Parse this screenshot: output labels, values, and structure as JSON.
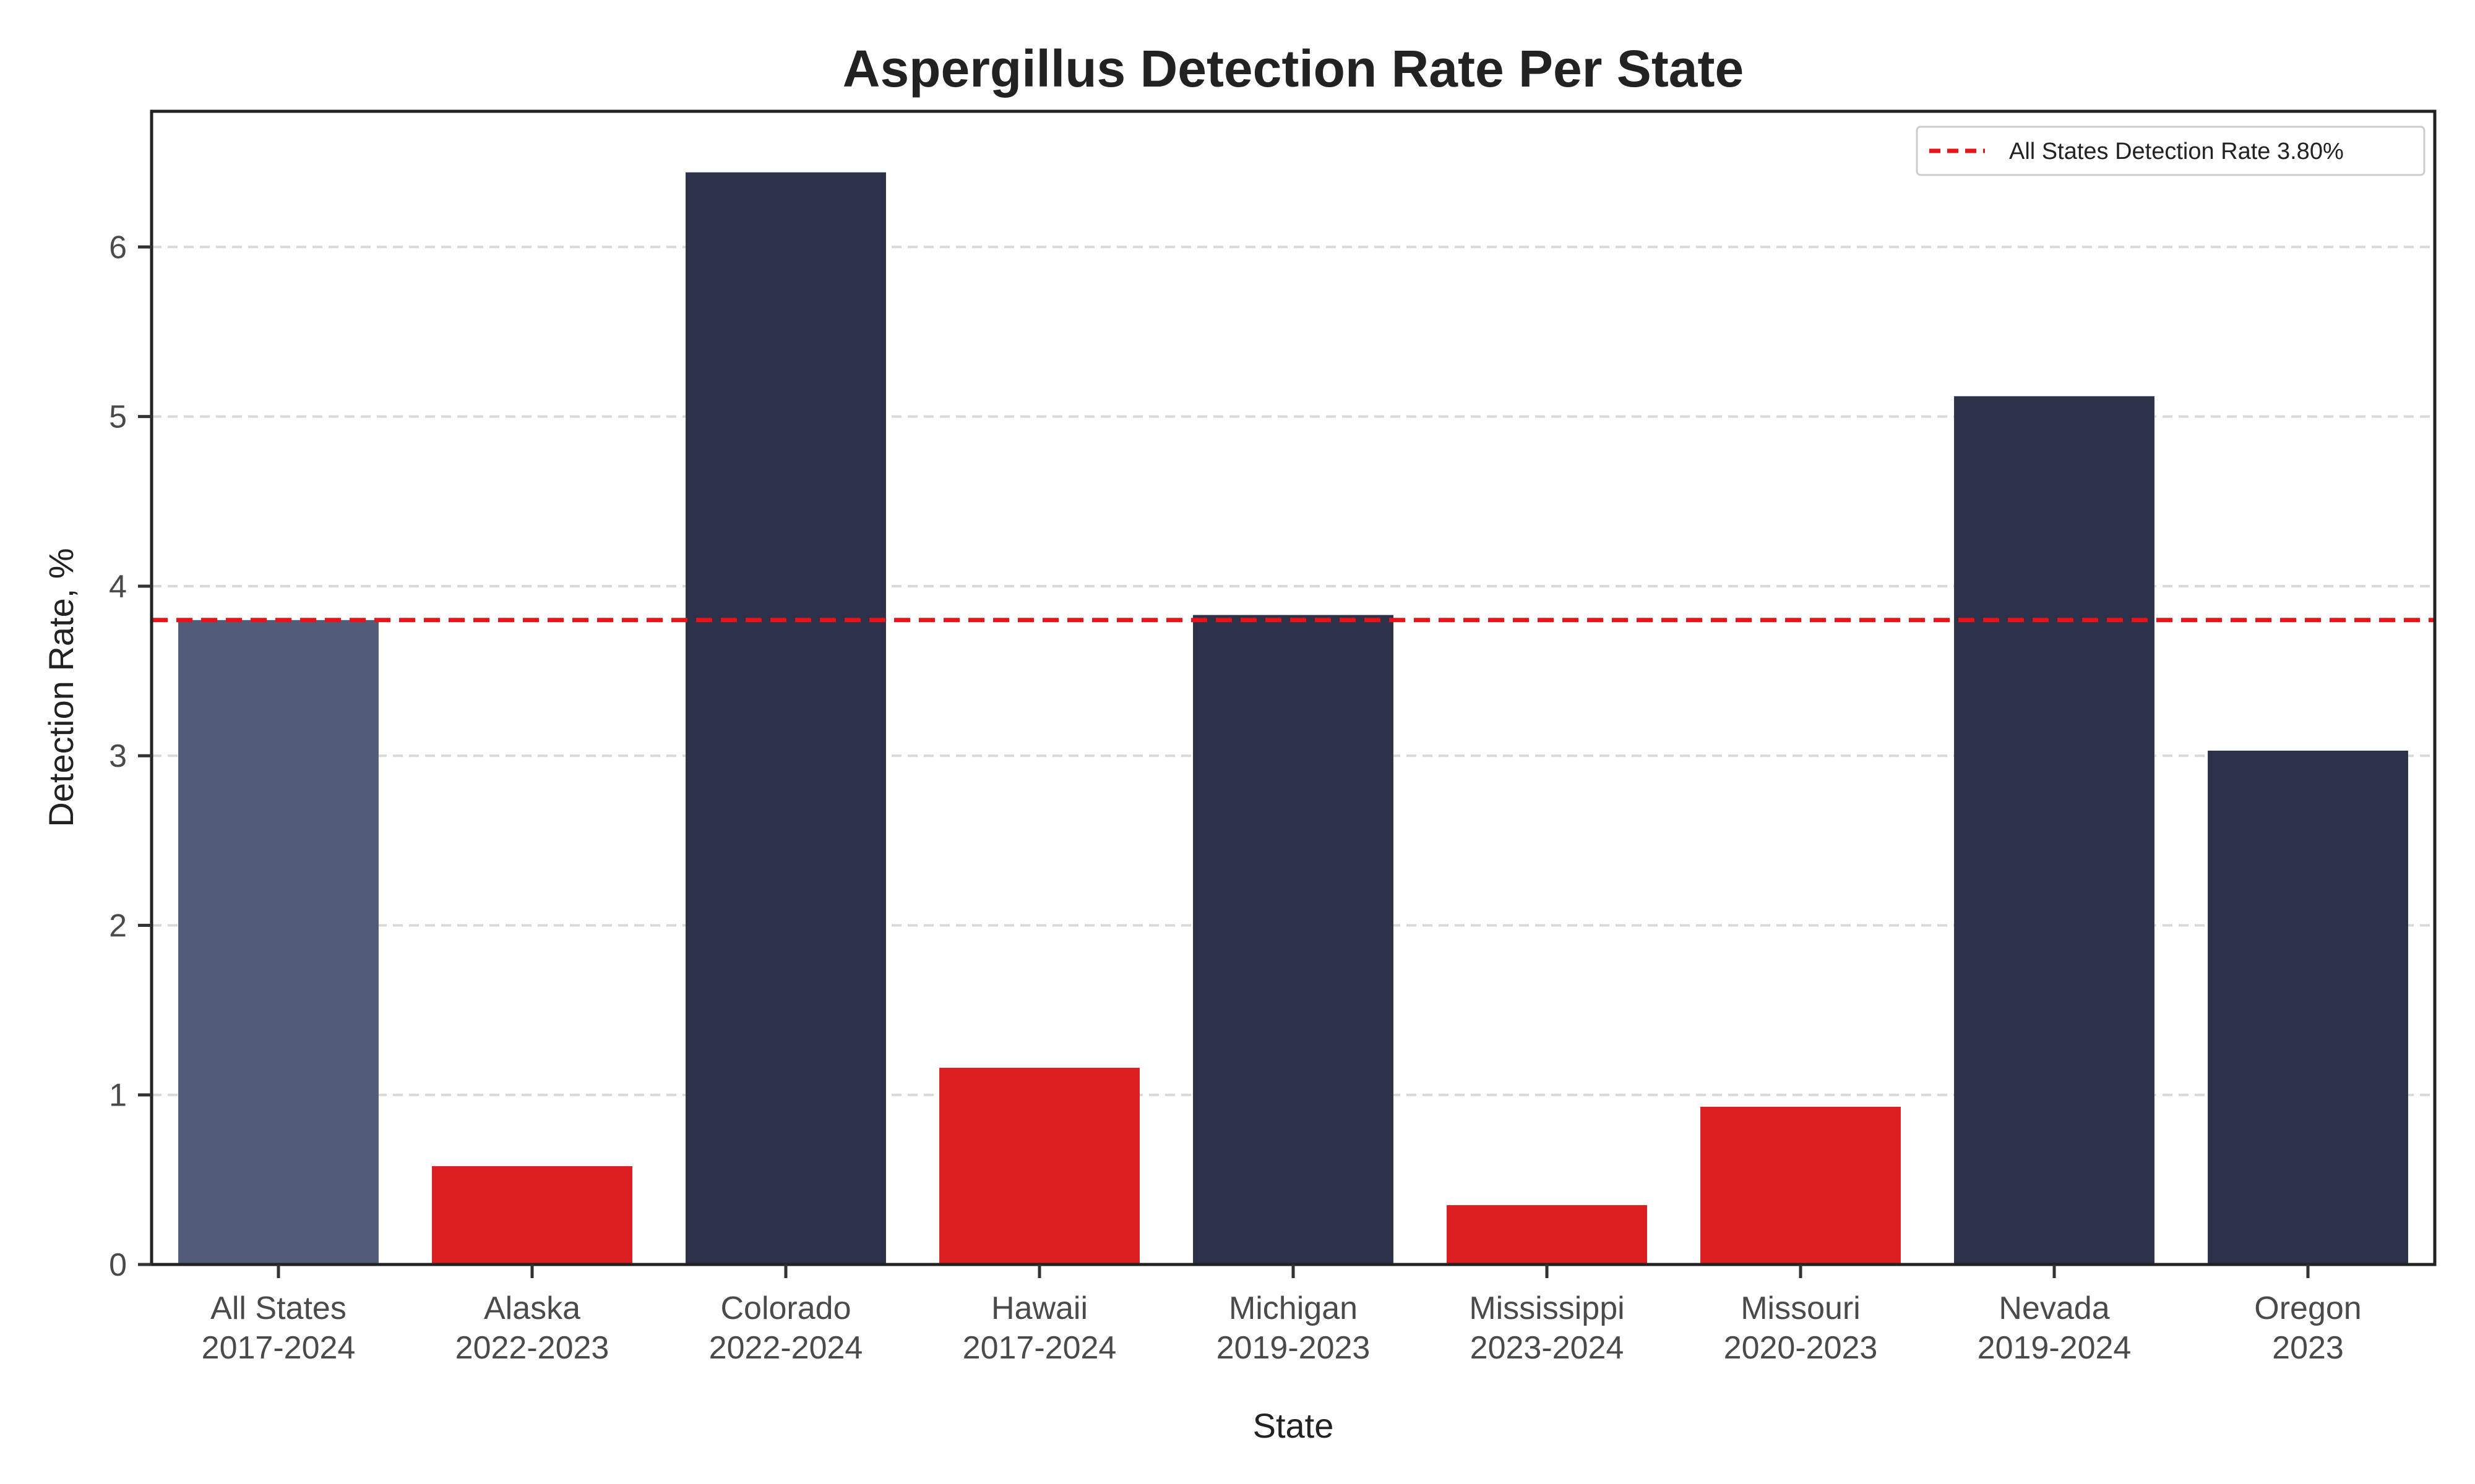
{
  "chart_data": {
    "type": "bar",
    "title": "Aspergillus Detection Rate Per State",
    "xlabel": "State",
    "ylabel": "Detection Rate, %",
    "ylim": [
      0,
      6.8
    ],
    "yticks": [
      "0",
      "1",
      "2",
      "3",
      "4",
      "5",
      "6"
    ],
    "grid": "y-dashed",
    "categories": [
      {
        "name": "All States",
        "period": "2017-2024"
      },
      {
        "name": "Alaska",
        "period": "2022-2023"
      },
      {
        "name": "Colorado",
        "period": "2022-2024"
      },
      {
        "name": "Hawaii",
        "period": "2017-2024"
      },
      {
        "name": "Michigan",
        "period": "2019-2023"
      },
      {
        "name": "Mississippi",
        "period": "2023-2024"
      },
      {
        "name": "Missouri",
        "period": "2020-2023"
      },
      {
        "name": "Nevada",
        "period": "2019-2024"
      },
      {
        "name": "Oregon",
        "period": "2023"
      }
    ],
    "values": [
      3.8,
      0.58,
      6.44,
      1.16,
      3.83,
      0.35,
      0.93,
      5.12,
      3.03
    ],
    "bar_colors": [
      "#525c79",
      "#dc1f21",
      "#2e3249",
      "#dc1f21",
      "#2e3249",
      "#dc1f21",
      "#dc1f21",
      "#2e3249",
      "#2e3249"
    ],
    "reference_line": {
      "value": 3.8,
      "label": "All States Detection Rate 3.80%",
      "color": "#e8141a",
      "style": "dashed"
    },
    "legend": {
      "position": "top-right"
    }
  }
}
